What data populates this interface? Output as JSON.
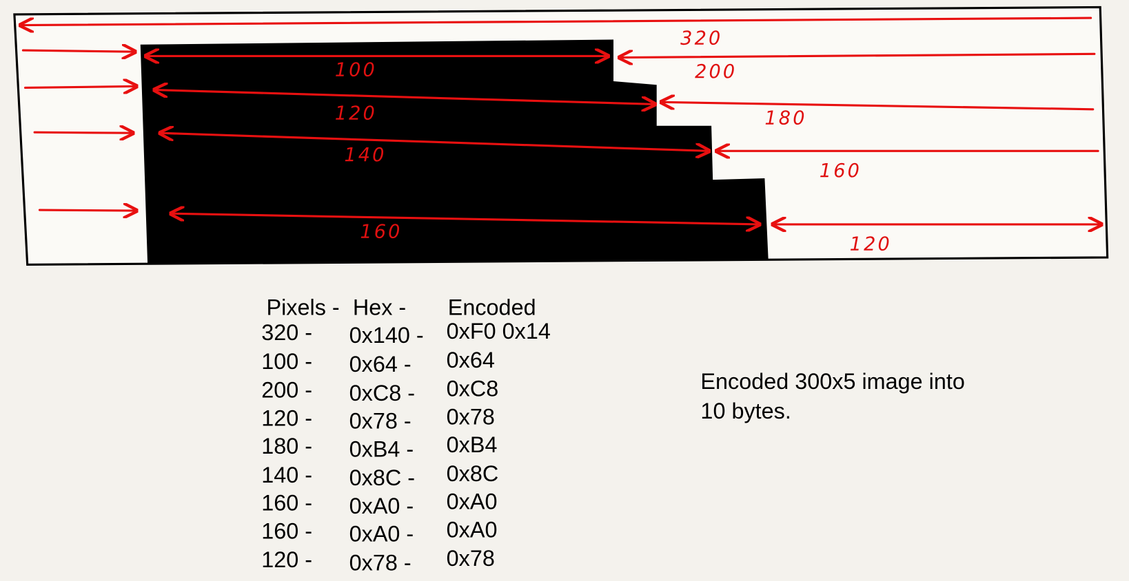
{
  "diagram": {
    "labels": [
      "320",
      "100",
      "200",
      "120",
      "180",
      "140",
      "160",
      "160",
      "120"
    ]
  },
  "table": {
    "header": [
      "Pixels -",
      "Hex -",
      "Encoded"
    ],
    "rows": [
      [
        "320 -",
        "0x140 -",
        "0xF0 0x14"
      ],
      [
        "100 -",
        "0x64 -",
        "0x64"
      ],
      [
        "200 -",
        "0xC8 -",
        "0xC8"
      ],
      [
        "120 -",
        "0x78 -",
        "0x78"
      ],
      [
        "180 -",
        "0xB4 -",
        "0xB4"
      ],
      [
        "140 -",
        "0x8C -",
        "0x8C"
      ],
      [
        "160 -",
        "0xA0 -",
        "0xA0"
      ],
      [
        "160 -",
        "0xA0 -",
        "0xA0"
      ],
      [
        "120 -",
        "0x78 -",
        "0x78"
      ]
    ]
  },
  "note": [
    "Encoded 300x5 image into",
    "10 bytes."
  ]
}
